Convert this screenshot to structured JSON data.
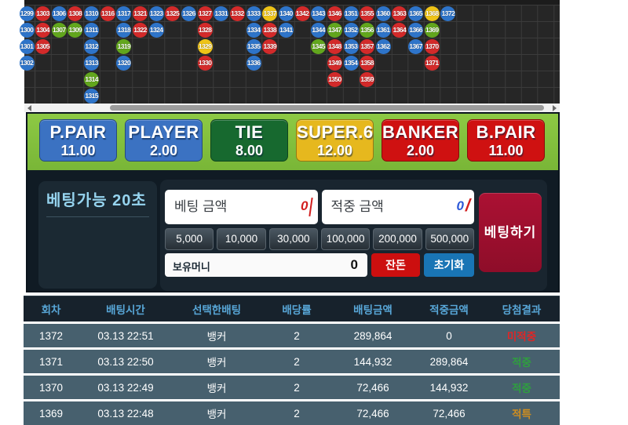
{
  "road": {
    "colors": {
      "b": "#2e74c9",
      "r": "#d32a2a",
      "g": "#62a61d",
      "y": "#eec317"
    },
    "columns": [
      [
        "1299b",
        "1300b",
        "1301b",
        "1302b"
      ],
      [
        "1303r",
        "1304r",
        "1305r"
      ],
      [
        "1306b",
        "1307g"
      ],
      [
        "1308r",
        "1309g"
      ],
      [
        "1310b",
        "1311b",
        "1312b",
        "1313b",
        "1314g",
        "1315b"
      ],
      [
        "1316r"
      ],
      [
        "1317b",
        "1318b",
        "1319g",
        "1320b"
      ],
      [
        "1321r",
        "1322r"
      ],
      [
        "1323b",
        "1324b"
      ],
      [
        "1325r"
      ],
      [
        "1326b"
      ],
      [
        "1327r",
        "1328r",
        "1329y",
        "1330r"
      ],
      [
        "1331b"
      ],
      [
        "1332r"
      ],
      [
        "1333b",
        "1334b",
        "1335b",
        "1336b"
      ],
      [
        "1337y",
        "1338r",
        "1339r"
      ],
      [
        "1340b",
        "1341b"
      ],
      [
        "1342r"
      ],
      [
        "1343b",
        "1344b",
        "1345g"
      ],
      [
        "1346r",
        "1347g",
        "1348r",
        "1349r",
        "1350r"
      ],
      [
        "1351b",
        "1352b",
        "1353b",
        "1354b"
      ],
      [
        "1355r",
        "1356g",
        "1357r",
        "1358r",
        "1359r"
      ],
      [
        "1360b",
        "1361b",
        "1362b"
      ],
      [
        "1363r",
        "1364r"
      ],
      [
        "1365b",
        "1366b",
        "1367b"
      ],
      [
        "1368y",
        "1369g",
        "1370r",
        "1371r"
      ],
      [
        "1372b"
      ]
    ]
  },
  "bets": {
    "options": [
      {
        "key": "p-pair",
        "label": "P.PAIR",
        "value": "11.00",
        "bg": "#3b72c2"
      },
      {
        "key": "player",
        "label": "PLAYER",
        "value": "2.00",
        "bg": "#3b72c2"
      },
      {
        "key": "tie",
        "label": "TIE",
        "value": "8.00",
        "bg": "#17692f"
      },
      {
        "key": "super6",
        "label": "SUPER.6",
        "value": "12.00",
        "bg": "#e6b81e"
      },
      {
        "key": "banker",
        "label": "BANKER",
        "value": "2.00",
        "bg": "#cf1111"
      },
      {
        "key": "b-pair",
        "label": "B.PAIR",
        "value": "11.00",
        "bg": "#cf1111"
      }
    ]
  },
  "panel": {
    "timer": "베팅가능 20초",
    "bet_amount_placeholder": "베팅 금액",
    "bet_amount_mark": "0",
    "win_amount_placeholder": "적중 금액",
    "win_amount_mark": "0",
    "win_amount_slash": "/",
    "chips": [
      "5,000",
      "10,000",
      "30,000",
      "100,000",
      "200,000",
      "500,000"
    ],
    "balance_label": "보유머니",
    "balance_value": "0",
    "change_button": "잔돈",
    "reset_button": "초기화",
    "bet_button": "베팅하기"
  },
  "history": {
    "headers": [
      "회차",
      "배팅시간",
      "선택한배팅",
      "배당률",
      "배팅금액",
      "적중금액",
      "당첨결과"
    ],
    "result_colors": {
      "miss": "#e02626",
      "hit": "#2f9e3f",
      "special": "#cf8d1f"
    },
    "rows": [
      {
        "round": "1372",
        "time": "03.13 22:51",
        "pick": "뱅커",
        "odds": "2",
        "amount": "289,864",
        "win": "0",
        "result": "미적중",
        "result_type": "miss"
      },
      {
        "round": "1371",
        "time": "03.13 22:50",
        "pick": "뱅커",
        "odds": "2",
        "amount": "144,932",
        "win": "289,864",
        "result": "적중",
        "result_type": "hit"
      },
      {
        "round": "1370",
        "time": "03.13 22:49",
        "pick": "뱅커",
        "odds": "2",
        "amount": "72,466",
        "win": "144,932",
        "result": "적중",
        "result_type": "hit"
      },
      {
        "round": "1369",
        "time": "03.13 22:48",
        "pick": "뱅커",
        "odds": "2",
        "amount": "72,466",
        "win": "72,466",
        "result": "적특",
        "result_type": "special"
      }
    ]
  }
}
